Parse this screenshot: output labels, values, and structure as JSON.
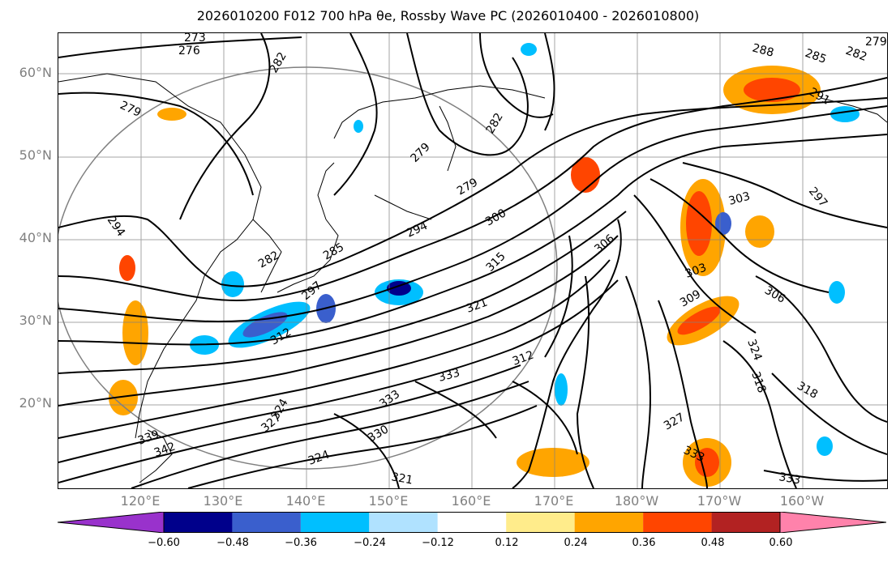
{
  "title": "2026010200 F012 700 hPa θe, Rossby Wave PC (2026010400 - 2026010800)",
  "map": {
    "lat_labels": [
      "60°N",
      "50°N",
      "40°N",
      "30°N",
      "20°N"
    ],
    "lon_labels": [
      "120°E",
      "130°E",
      "140°E",
      "150°E",
      "160°E",
      "170°E",
      "180°W",
      "170°W",
      "160°W"
    ],
    "gridline_color": "#808080",
    "contour_color": "#000000",
    "contour_labels": [
      "273",
      "276",
      "282",
      "279",
      "288",
      "285",
      "282",
      "279",
      "291",
      "279",
      "279",
      "282",
      "294",
      "303",
      "297",
      "300",
      "294",
      "306",
      "303",
      "306",
      "285",
      "282",
      "315",
      "297",
      "312",
      "321",
      "309",
      "324",
      "312",
      "318",
      "333",
      "327",
      "333",
      "330",
      "318",
      "333",
      "324",
      "339",
      "342",
      "327",
      "324",
      "321",
      "333"
    ]
  },
  "colorbar": {
    "colors": [
      "#9932cc",
      "#00008b",
      "#3a5fcd",
      "#00bfff",
      "#b0e2ff",
      "#ffffff",
      "#ffec8b",
      "#ffa500",
      "#ff4500",
      "#b22222",
      "#ff82ab"
    ],
    "tick_labels": [
      "−0.60",
      "−0.48",
      "−0.36",
      "−0.24",
      "−0.12",
      "0.12",
      "0.24",
      "0.36",
      "0.48",
      "0.60"
    ]
  }
}
